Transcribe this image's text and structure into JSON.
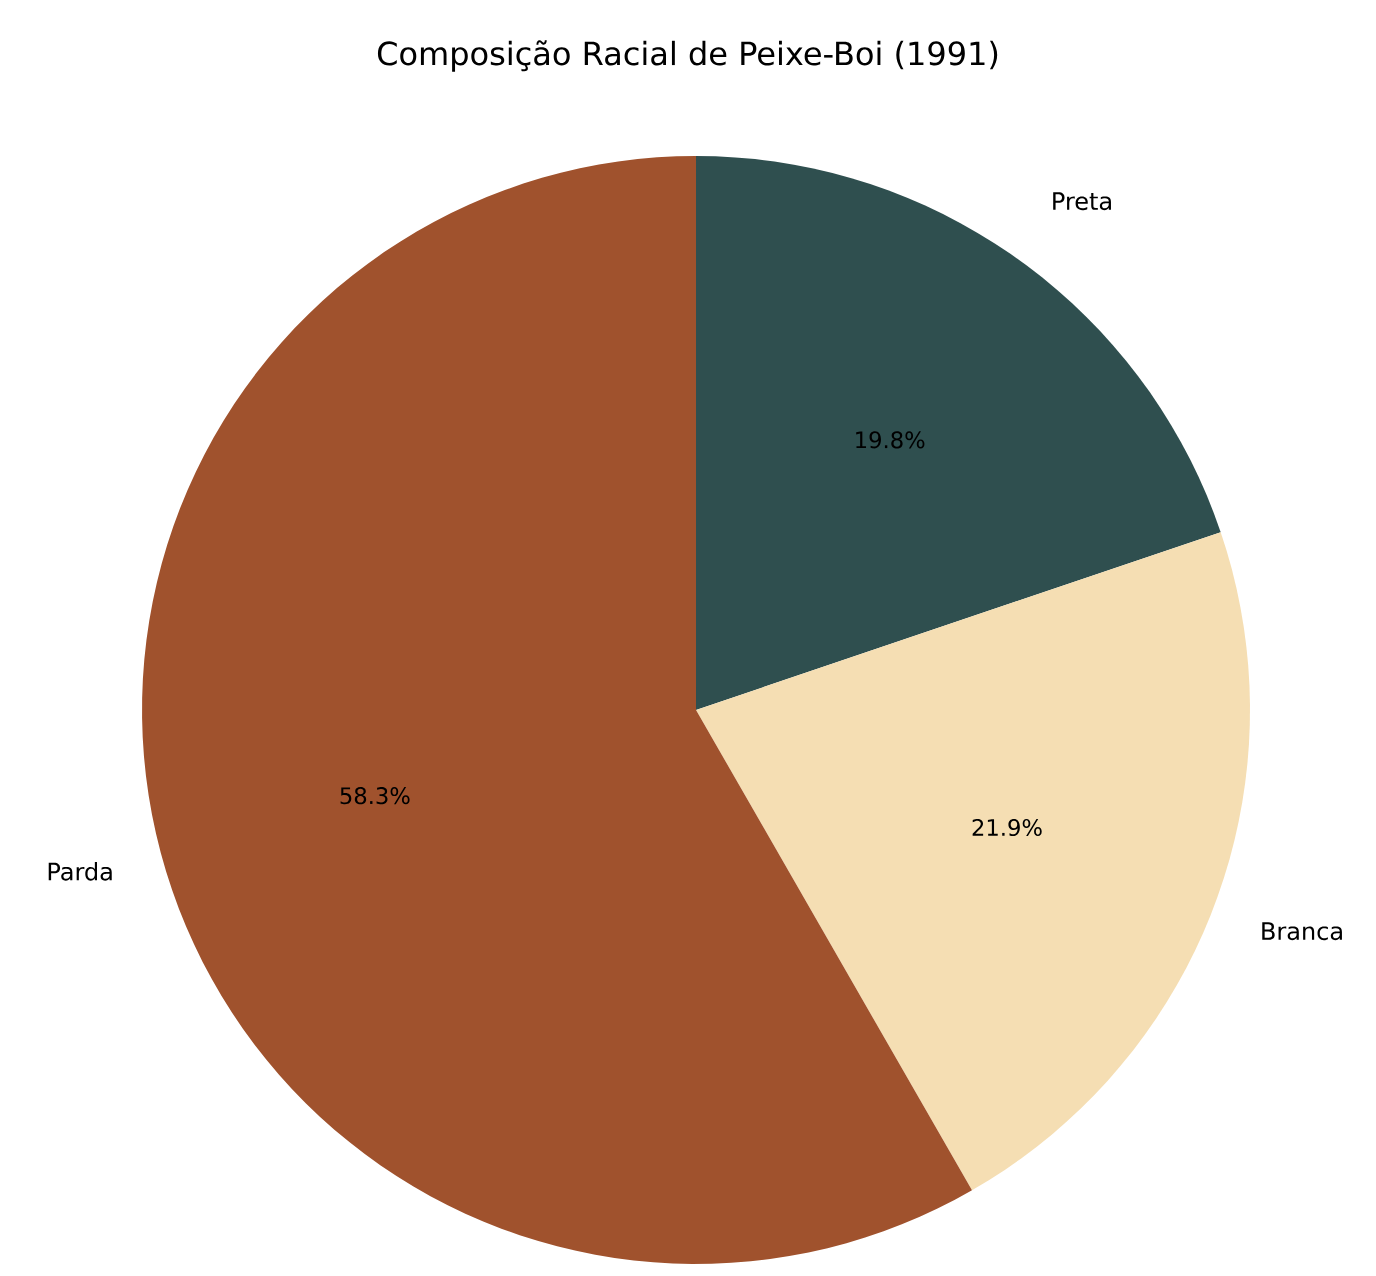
{
  "chart_data": {
    "type": "pie",
    "title": "Composição Racial de Peixe-Boi (1991)",
    "categories": [
      "Preta",
      "Branca",
      "Parda"
    ],
    "values": [
      19.8,
      21.9,
      58.3
    ],
    "colors": [
      "#2f4f4f",
      "#f5deb3",
      "#a0522d"
    ],
    "value_labels": [
      "19.8%",
      "21.9%",
      "58.3%"
    ]
  }
}
